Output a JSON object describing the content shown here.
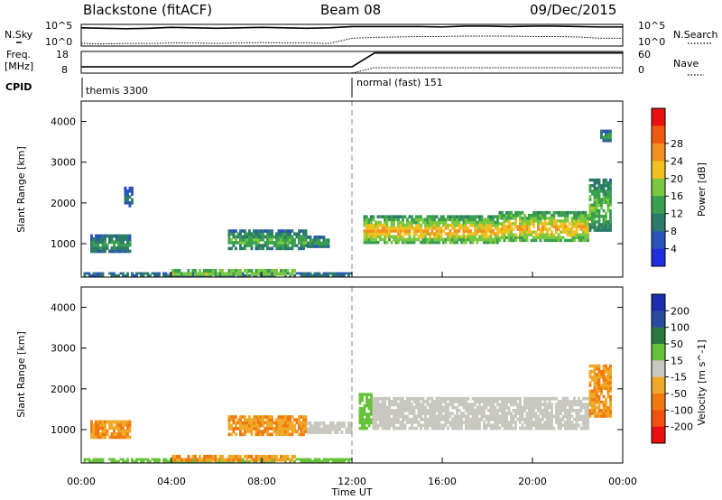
{
  "header": {
    "title_left": "Blackstone (fitACF)",
    "title_center": "Beam 08",
    "title_right": "09/Dec/2015"
  },
  "noise_panel": {
    "left_label": "N.Sky",
    "left_ticks": [
      "10^5",
      "10^0"
    ],
    "right_label": "N.Search",
    "right_ticks": [
      "10^5",
      "10^0"
    ]
  },
  "freq_panel": {
    "left_label_line1": "Freq.",
    "left_label_line2": "[MHz]",
    "left_ticks": [
      "18",
      "8"
    ],
    "right_label": "Nave",
    "right_ticks": [
      "60",
      "0"
    ]
  },
  "cpid_panel": {
    "label": "CPID",
    "modes": [
      {
        "name": "themis 3300",
        "start": "00:00"
      },
      {
        "name": "normal (fast) 151",
        "start": "12:00"
      }
    ]
  },
  "x_axis": {
    "label": "Time UT",
    "ticks": [
      "00:00",
      "04:00",
      "08:00",
      "12:00",
      "16:00",
      "20:00",
      "00:00"
    ]
  },
  "chart_data": [
    {
      "type": "heatmap",
      "quantity": "Power",
      "colorbar_label": "Power [dB]",
      "ylabel": "Slant Range [km]",
      "yticks": [
        "1000",
        "2000",
        "3000",
        "4000"
      ],
      "ylim": [
        180,
        4500
      ],
      "xlim": [
        0,
        24
      ],
      "colorbar_ticks": [
        "4",
        "8",
        "12",
        "16",
        "20",
        "24",
        "28"
      ],
      "colorbar_colors": [
        "#1f2fe0",
        "#2a55b8",
        "#2b7a6a",
        "#3aa050",
        "#7ac840",
        "#f0c020",
        "#f09020",
        "#f05a10",
        "#e81010"
      ],
      "regions": [
        {
          "t0": 0.4,
          "t1": 2.2,
          "r0": 780,
          "r1": 1230,
          "v": 12
        },
        {
          "t0": 1.9,
          "t1": 2.3,
          "r0": 1900,
          "r1": 2400,
          "v": 8
        },
        {
          "t0": 0.1,
          "t1": 12.0,
          "r0": 200,
          "r1": 300,
          "v": 10
        },
        {
          "t0": 4.0,
          "t1": 9.5,
          "r0": 220,
          "r1": 380,
          "v": 20
        },
        {
          "t0": 6.5,
          "t1": 10.0,
          "r0": 850,
          "r1": 1350,
          "v": 14
        },
        {
          "t0": 10.0,
          "t1": 11.0,
          "r0": 900,
          "r1": 1200,
          "v": 12
        },
        {
          "t0": 12.5,
          "t1": 18.5,
          "r0": 1000,
          "r1": 1700,
          "v": 22
        },
        {
          "t0": 18.5,
          "t1": 22.5,
          "r0": 1050,
          "r1": 1800,
          "v": 22
        },
        {
          "t0": 22.5,
          "t1": 23.5,
          "r0": 1300,
          "r1": 2600,
          "v": 16
        },
        {
          "t0": 23.0,
          "t1": 23.5,
          "r0": 3500,
          "r1": 3800,
          "v": 12
        }
      ]
    },
    {
      "type": "heatmap",
      "quantity": "Velocity",
      "colorbar_label": "Velocity [m s^-1]",
      "ylabel": "Slant Range [km]",
      "yticks": [
        "1000",
        "2000",
        "3000",
        "4000"
      ],
      "ylim": [
        180,
        4500
      ],
      "xlim": [
        0,
        24
      ],
      "colorbar_ticks": [
        "200",
        "100",
        "50",
        "15",
        "-15",
        "-50",
        "-100",
        "-200"
      ],
      "colorbar_colors": [
        "#1a2fb0",
        "#2a4ca0",
        "#2a7a40",
        "#66c23a",
        "#c8c8c0",
        "#f0a828",
        "#f07a10",
        "#f05010",
        "#e81010"
      ],
      "regions": [
        {
          "t0": 0.4,
          "t1": 2.2,
          "r0": 780,
          "r1": 1230,
          "v": -50
        },
        {
          "t0": 0.1,
          "t1": 12.0,
          "r0": 200,
          "r1": 300,
          "v": 30
        },
        {
          "t0": 4.0,
          "t1": 9.5,
          "r0": 220,
          "r1": 380,
          "v": -50
        },
        {
          "t0": 6.5,
          "t1": 10.0,
          "r0": 850,
          "r1": 1350,
          "v": -50
        },
        {
          "t0": 10.0,
          "t1": 12.0,
          "r0": 900,
          "r1": 1200,
          "v": 0
        },
        {
          "t0": 12.3,
          "t1": 12.9,
          "r0": 1000,
          "r1": 1900,
          "v": 30
        },
        {
          "t0": 12.9,
          "t1": 22.5,
          "r0": 1000,
          "r1": 1800,
          "v": 0
        },
        {
          "t0": 22.5,
          "t1": 23.5,
          "r0": 1300,
          "r1": 2600,
          "v": -50
        }
      ]
    }
  ],
  "noise_data": {
    "sky_log10": [
      4.2,
      4.1,
      4.0,
      4.1,
      4.3,
      4.2,
      4.1,
      4.2,
      4.3,
      4.2,
      4.1,
      4.2,
      4.5,
      4.5,
      4.5,
      4.5,
      4.4,
      4.6,
      4.6,
      4.5,
      4.6,
      4.6,
      4.5,
      4.4
    ],
    "search_log10": [
      0.6,
      0.5,
      0.6,
      0.6,
      0.7,
      0.7,
      0.6,
      0.7,
      0.8,
      0.7,
      0.7,
      0.6,
      1.8,
      2.0,
      2.1,
      2.2,
      2.2,
      2.3,
      2.3,
      2.3,
      2.2,
      2.2,
      2.1,
      1.8
    ]
  },
  "freq_data": {
    "freq_mhz": [
      10.9,
      10.9,
      10.9,
      10.9,
      10.9,
      10.9,
      10.9,
      10.9,
      10.9,
      10.9,
      10.9,
      10.9,
      10.9,
      17.3,
      17.3,
      17.3,
      17.3,
      17.3,
      17.3,
      17.3,
      17.3,
      17.3,
      17.3,
      17.3
    ],
    "nave": [
      0,
      0,
      0,
      0,
      0,
      0,
      0,
      0,
      0,
      0,
      0,
      0,
      0,
      15,
      15,
      15,
      15,
      15,
      15,
      15,
      15,
      15,
      15,
      15
    ]
  }
}
